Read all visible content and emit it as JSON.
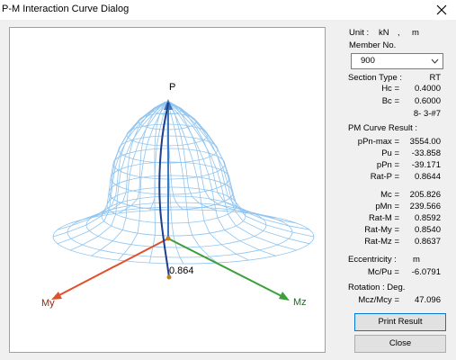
{
  "window": {
    "title": "P-M Interaction Curve Dialog"
  },
  "plot": {
    "axis_p": "P",
    "axis_my": "My",
    "axis_mz": "Mz",
    "ratio_label": "0.864"
  },
  "panel": {
    "unit": {
      "label": "Unit :",
      "force": "kN",
      "separator": ",",
      "length": "m"
    },
    "member": {
      "label": "Member No.",
      "value": "900"
    },
    "section": {
      "label": "Section Type :",
      "value": "RT",
      "rows": [
        {
          "label": "Hc =",
          "value": "0.4000"
        },
        {
          "label": "Bc =",
          "value": "0.6000"
        }
      ],
      "rebar": "8- 3-#7"
    },
    "result": {
      "label": "PM Curve Result :",
      "group1": [
        {
          "label": "pPn-max =",
          "value": "3554.00"
        },
        {
          "label": "Pu =",
          "value": "-33.858"
        },
        {
          "label": "pPn =",
          "value": "-39.171"
        },
        {
          "label": "Rat-P =",
          "value": "0.8644"
        }
      ],
      "group2": [
        {
          "label": "Mc =",
          "value": "205.826"
        },
        {
          "label": "pMn =",
          "value": "239.566"
        },
        {
          "label": "Rat-M =",
          "value": "0.8592"
        },
        {
          "label": "Rat-My =",
          "value": "0.8540"
        },
        {
          "label": "Rat-Mz =",
          "value": "0.8637"
        }
      ]
    },
    "eccentricity": {
      "label": "Eccentricity :",
      "unit": "m",
      "row": {
        "label": "Mc/Pu =",
        "value": "-6.0791"
      }
    },
    "rotation": {
      "label": "Rotation : Deg.",
      "row": {
        "label": "Mcz/Mcy =",
        "value": "47.096"
      }
    },
    "buttons": {
      "print": "Print Result",
      "close": "Close"
    }
  }
}
